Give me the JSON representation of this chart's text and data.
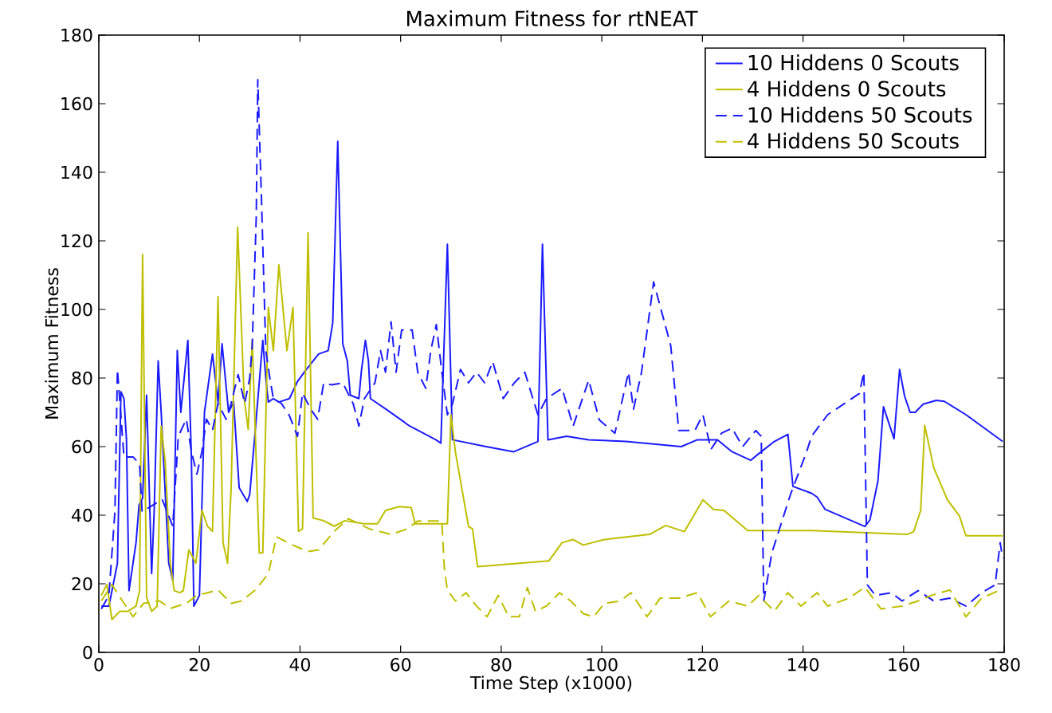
{
  "chart_data": {
    "type": "line",
    "title": "Maximum Fitness for rtNEAT",
    "xlabel": "Time Step (x1000)",
    "ylabel": "Maximum Fitness",
    "xlim": [
      0,
      180
    ],
    "ylim": [
      0,
      180
    ],
    "xticks": [
      0,
      20,
      40,
      60,
      80,
      100,
      120,
      140,
      160,
      180
    ],
    "yticks": [
      0,
      20,
      40,
      60,
      80,
      100,
      120,
      140,
      160,
      180
    ],
    "grid": false,
    "legend": "top right",
    "marker": "none",
    "series": [
      {
        "name": "10 Hiddens 0 Scouts",
        "color": "#1a1aff",
        "line_style": "solid",
        "x": [
          0.5,
          2,
          3.7,
          4.4,
          5,
          5.5,
          6,
          7.4,
          8,
          8.7,
          9.5,
          10.5,
          11,
          11.8,
          12.4,
          13.9,
          14.7,
          15.6,
          16.3,
          17.7,
          18.4,
          18.9,
          20,
          21,
          22.6,
          23.7,
          24.5,
          25.8,
          26.8,
          27.9,
          29.5,
          30,
          31,
          32.6,
          33.2,
          33.7,
          34.7,
          35.8,
          37.9,
          39.5,
          41,
          43.7,
          45.6,
          46.5,
          47.5,
          48.5,
          49.4,
          50,
          51.7,
          52.2,
          53,
          53.6,
          54,
          57,
          61.8,
          67,
          68,
          69.3,
          70.3,
          77,
          82.5,
          87.3,
          88.2,
          89.3,
          93,
          97.4,
          104.8,
          115.8,
          119,
          123,
          125.9,
          129.6,
          131,
          134.3,
          137,
          138,
          141.7,
          142.8,
          144.4,
          152.3,
          153.3,
          154.9,
          156,
          158.1,
          159.2,
          160.2,
          161.3,
          162.3,
          163.9,
          166.5,
          168.1,
          172.4,
          179.7
        ],
        "values": [
          13.5,
          13.5,
          26,
          76,
          74,
          62,
          18,
          32,
          43,
          45,
          75,
          23,
          41,
          85,
          70,
          26,
          21,
          88,
          70,
          91,
          57,
          13.5,
          16.6,
          70,
          87,
          73,
          90,
          70,
          73,
          48,
          44,
          46,
          63,
          91,
          80,
          73,
          74,
          73,
          74,
          79,
          82,
          87,
          88,
          96,
          149,
          90,
          85,
          75,
          74,
          82,
          91,
          85,
          74,
          71,
          66,
          62,
          61,
          119,
          62,
          60,
          58.5,
          61.5,
          119,
          62,
          63,
          62,
          61.5,
          60,
          62,
          62,
          58.5,
          56,
          57.7,
          61.5,
          63.6,
          48.4,
          46.4,
          45.3,
          41.7,
          36.7,
          38.6,
          50,
          71.6,
          62.3,
          82.5,
          74.7,
          70,
          70,
          72.4,
          73.5,
          73.2,
          69.3,
          61.5
        ]
      },
      {
        "name": "4 Hiddens 0 Scouts",
        "color": "#bfbf00",
        "line_style": "solid",
        "x": [
          0.5,
          1.6,
          2.6,
          4.2,
          5.8,
          7.4,
          8.1,
          8.7,
          9.5,
          10.5,
          11.6,
          12.4,
          13.2,
          14.2,
          15,
          16.1,
          16.8,
          17.9,
          19.3,
          20.5,
          21.6,
          22.6,
          23.7,
          24.7,
          25.6,
          26.3,
          27.6,
          28.9,
          29.7,
          30.5,
          31.9,
          32.6,
          33.7,
          34.7,
          35.8,
          37.4,
          38.6,
          39.7,
          40.5,
          41.6,
          42.6,
          44.7,
          46.8,
          48.9,
          52.8,
          55.4,
          57,
          59.7,
          62.1,
          62.9,
          69.3,
          70,
          70.9,
          73.5,
          74.3,
          75.3,
          89.5,
          92.1,
          94.3,
          96.3,
          100.5,
          109.5,
          112.7,
          116.4,
          120.1,
          122.2,
          124.3,
          129,
          141.7,
          160.7,
          162,
          163.4,
          164.2,
          166,
          168.7,
          171.1,
          172.4,
          179.7
        ],
        "values": [
          16.6,
          19.8,
          9.6,
          12,
          12,
          13.5,
          18,
          116,
          16,
          12,
          13.5,
          66,
          55.5,
          26,
          18,
          17.4,
          18,
          29.9,
          26,
          41.5,
          36.8,
          35.3,
          103.7,
          32,
          26,
          47.7,
          124,
          74,
          65,
          91,
          29,
          29,
          100.6,
          88,
          113,
          88,
          100.6,
          35.3,
          36,
          122.4,
          39.2,
          38.4,
          36.8,
          38.4,
          37.5,
          37.5,
          41.4,
          42.5,
          42.2,
          37.5,
          37.5,
          69.3,
          58.4,
          36.7,
          36,
          25,
          26.7,
          32,
          32.9,
          31.3,
          32.9,
          34.4,
          37,
          35.2,
          44.5,
          41.7,
          41.4,
          35.5,
          35.5,
          34.4,
          35.2,
          41.4,
          66.2,
          53.8,
          44.5,
          39.8,
          34,
          34
        ]
      },
      {
        "name": "10 Hiddens 50 Scouts",
        "color": "#1a1aff",
        "line_style": "dashed",
        "x": [
          0.5,
          2,
          3.2,
          3.7,
          4.2,
          5,
          6.8,
          8.1,
          8.6,
          12.6,
          14.7,
          15.8,
          17.4,
          18.4,
          19.5,
          20.5,
          21.4,
          22.6,
          23.7,
          25.3,
          26.3,
          27.7,
          29,
          30,
          30.5,
          31.3,
          31.6,
          32.3,
          33.2,
          34,
          34.7,
          36.3,
          37.9,
          39.5,
          40.5,
          42.1,
          43.5,
          44.7,
          46.3,
          48.5,
          50.6,
          51.7,
          52.8,
          54.9,
          56,
          57,
          58.1,
          59.1,
          60.2,
          62.3,
          63.4,
          65,
          66,
          67.1,
          68.2,
          69.3,
          70.3,
          71.9,
          73.5,
          75.1,
          76.7,
          78.3,
          80.4,
          82.6,
          84.7,
          86.3,
          87.3,
          89,
          92.1,
          94.3,
          97.4,
          99.5,
          102.6,
          105.3,
          106.3,
          107.9,
          110.3,
          113.7,
          115.3,
          118.5,
          120.1,
          121.7,
          123.8,
          125.9,
          128,
          130.6,
          131.7,
          132.2,
          133.8,
          137.5,
          140.7,
          141.7,
          144.9,
          148.1,
          151.2,
          152.1,
          152.8,
          154.4,
          157.6,
          159.7,
          162.9,
          166,
          169.2,
          172.4,
          175.5,
          178.2,
          179.2,
          179.7
        ],
        "values": [
          12.7,
          16.6,
          41,
          82.5,
          72.6,
          57,
          57,
          55,
          41,
          44.6,
          36.8,
          63,
          68,
          58.6,
          52,
          58.6,
          68,
          64.8,
          72.6,
          68,
          72.6,
          81,
          72.6,
          80,
          89.5,
          127,
          167,
          134,
          88,
          80,
          74,
          72.6,
          69,
          63,
          75.6,
          71,
          68,
          78.5,
          78,
          78.6,
          72.4,
          66,
          74,
          78.6,
          88,
          81.7,
          96.4,
          81.7,
          94,
          94,
          81.7,
          77,
          88,
          95.6,
          81.7,
          69.3,
          72.4,
          82.5,
          78.6,
          81.7,
          78.6,
          84.8,
          74,
          78.6,
          81.7,
          74,
          69.3,
          74,
          77,
          66,
          79.4,
          67.8,
          63.9,
          81.7,
          70.9,
          81.7,
          108,
          89.5,
          64.7,
          64.7,
          69.3,
          59.2,
          63.9,
          65.4,
          60,
          64.7,
          63,
          15,
          29,
          46,
          58.4,
          63,
          69.3,
          72.4,
          75.5,
          81.7,
          19.7,
          16.6,
          17.4,
          15,
          18,
          15,
          15.8,
          13.5,
          17.4,
          19.7,
          32,
          27.4
        ]
      },
      {
        "name": "4 Hiddens 50 Scouts",
        "color": "#bfbf00",
        "line_style": "dashed",
        "x": [
          0.5,
          2.6,
          4.7,
          6.8,
          8.9,
          12.1,
          14.2,
          17.4,
          19.5,
          21.6,
          23.7,
          26.3,
          28.4,
          31.1,
          33.7,
          35.3,
          38.4,
          41.6,
          43.7,
          46.8,
          49.6,
          53.8,
          58.1,
          61.3,
          63.4,
          68.2,
          68.7,
          69.3,
          70.9,
          73,
          75.1,
          77.2,
          79.4,
          81.5,
          83.6,
          85.2,
          86.8,
          89,
          91.6,
          93.8,
          96.4,
          98.4,
          100.5,
          103.7,
          105.8,
          109,
          111.6,
          115.3,
          119,
          121.6,
          125.3,
          129,
          131.2,
          134.3,
          137,
          139.6,
          142.8,
          144.9,
          149.1,
          152.3,
          155.5,
          159.7,
          162.9,
          165.5,
          169.2,
          172.4,
          175.5,
          179.2
        ],
        "values": [
          15,
          19.8,
          15,
          10.4,
          14.3,
          15,
          12.8,
          14.3,
          16.6,
          17.4,
          18.2,
          14.3,
          15,
          18.2,
          22.9,
          33.7,
          31.4,
          29.4,
          29.9,
          35.3,
          39,
          36,
          34.4,
          36,
          38.3,
          38.3,
          24.3,
          18.1,
          15,
          17.4,
          13.5,
          10.4,
          16.6,
          10.4,
          10.4,
          18.9,
          12,
          13.5,
          17.4,
          15,
          11.2,
          10.4,
          14.3,
          15,
          17.4,
          10.4,
          15.8,
          15.8,
          17.4,
          10.4,
          15,
          13.5,
          16.6,
          12,
          17.4,
          13.5,
          17.4,
          13.5,
          15.8,
          19,
          12.7,
          13.5,
          15,
          16.6,
          18.2,
          10.4,
          15.8,
          18.2
        ]
      }
    ]
  }
}
